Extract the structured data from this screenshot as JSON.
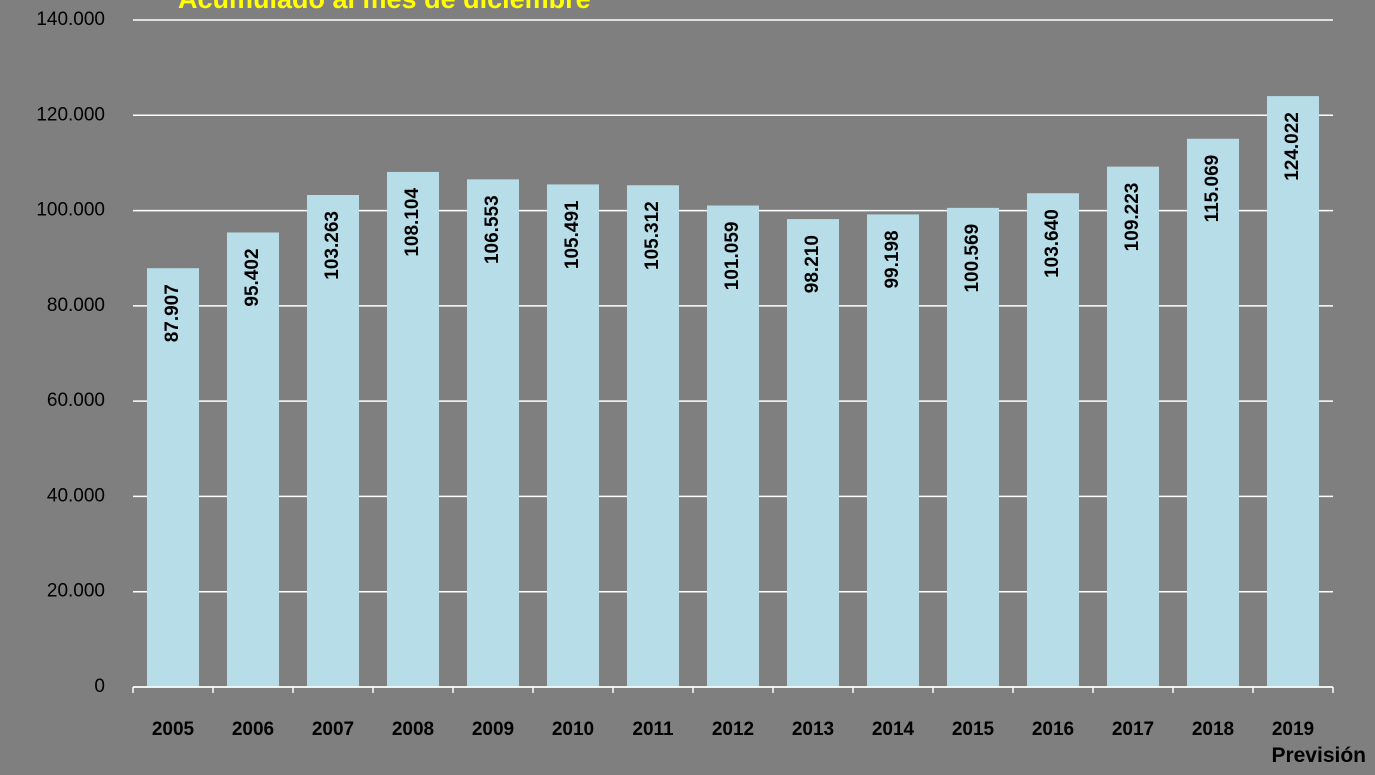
{
  "chart_data": {
    "type": "bar",
    "title": "Acumulado al mes de diciembre",
    "categories": [
      "2005",
      "2006",
      "2007",
      "2008",
      "2009",
      "2010",
      "2011",
      "2012",
      "2013",
      "2014",
      "2015",
      "2016",
      "2017",
      "2018",
      "2019"
    ],
    "values": [
      87907,
      95402,
      103263,
      108104,
      106553,
      105491,
      105312,
      101059,
      98210,
      99198,
      100569,
      103640,
      109223,
      115069,
      124022
    ],
    "value_labels": [
      "87.907",
      "95.402",
      "103.263",
      "108.104",
      "106.553",
      "105.491",
      "105.312",
      "101.059",
      "98.210",
      "99.198",
      "100.569",
      "103.640",
      "109.223",
      "115.069",
      "124.022"
    ],
    "color": "#b7dde8",
    "ylim": [
      0,
      140000
    ],
    "yticks": [
      0,
      {
        "value": 20000,
        "label": "20.000"
      },
      {
        "value": 40000,
        "label": "40.000"
      },
      {
        "value": 60000,
        "label": "60.000"
      },
      {
        "value": 80000,
        "label": "80.000"
      },
      {
        "value": 100000,
        "label": "100.000"
      },
      {
        "value": 120000,
        "label": "120.000"
      },
      {
        "value": 140000,
        "label": "140.000"
      }
    ],
    "grid": true,
    "annotation": "Previsión"
  }
}
